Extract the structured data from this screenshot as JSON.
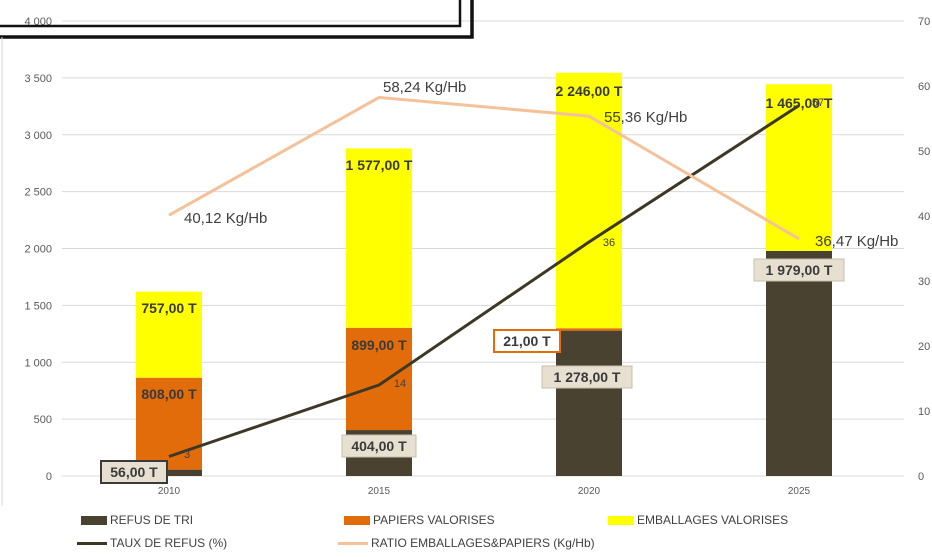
{
  "chart_data": {
    "type": "bar",
    "stacked": true,
    "categories": [
      "2010",
      "2015",
      "2020",
      "2025"
    ],
    "y_left": {
      "min": 0,
      "max": 4000,
      "ticks": [
        "0",
        "500",
        "1 000",
        "1 500",
        "2 000",
        "2 500",
        "3 000",
        "3 500",
        "4 000"
      ]
    },
    "y_right": {
      "min": 0,
      "max": 70,
      "ticks": [
        "0",
        "10",
        "20",
        "30",
        "40",
        "50",
        "60",
        "70"
      ]
    },
    "grid": true,
    "legend_position": "bottom",
    "series": [
      {
        "name": "REFUS DE TRI",
        "type": "bar",
        "axis": "left",
        "color": "#4a4230",
        "values": [
          56,
          404,
          1278,
          1979
        ],
        "labels": [
          "56,00 T",
          "404,00 T",
          "1 278,00 T",
          "1 979,00 T"
        ]
      },
      {
        "name": "PAPIERS VALORISES",
        "type": "bar",
        "axis": "left",
        "color": "#e36c0a",
        "values": [
          808,
          899,
          21,
          0
        ],
        "labels": [
          "808,00 T",
          "899,00 T",
          "21,00 T",
          ""
        ]
      },
      {
        "name": "EMBALLAGES VALORISES",
        "type": "bar",
        "axis": "left",
        "color": "#ffff00",
        "values": [
          757,
          1577,
          2246,
          1465
        ],
        "labels": [
          "757,00 T",
          "1 577,00 T",
          "2 246,00 T",
          "1 465,00 T"
        ]
      },
      {
        "name": "TAUX DE REFUS (%)",
        "type": "line",
        "axis": "right",
        "color": "#3d3826",
        "values": [
          3,
          14,
          36,
          57
        ],
        "labels": [
          "3",
          "14",
          "36",
          "57"
        ]
      },
      {
        "name": "RATIO EMBALLAGES&PAPIERS  (Kg/Hb)",
        "type": "line",
        "axis": "right",
        "color": "#f4c199",
        "values": [
          40.12,
          58.24,
          55.36,
          36.47
        ],
        "labels": [
          "40,12 Kg/Hb",
          "58,24 Kg/Hb",
          "55,36 Kg/Hb",
          "36,47 Kg/Hb"
        ]
      }
    ]
  }
}
